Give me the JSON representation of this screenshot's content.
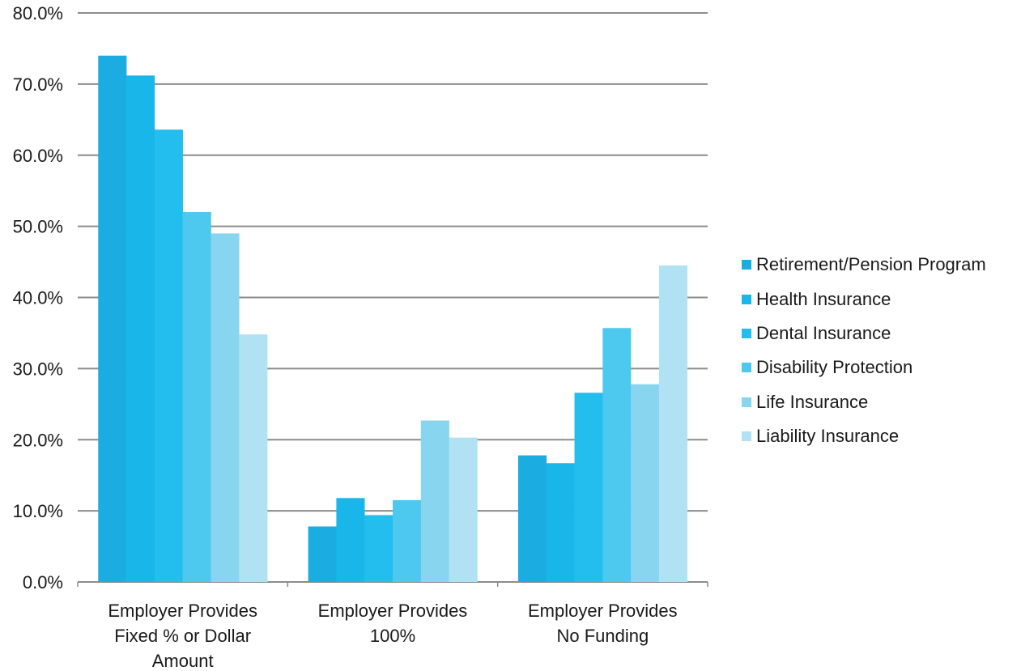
{
  "chart_data": {
    "type": "bar",
    "categories": [
      [
        "Employer Provides",
        "Fixed % or Dollar",
        "Amount"
      ],
      [
        "Employer Provides",
        "100%"
      ],
      [
        "Employer Provides",
        "No Funding"
      ]
    ],
    "series": [
      {
        "name": "Retirement/Pension Program",
        "color": "#1BACE2",
        "values": [
          74.0,
          7.8,
          17.8
        ]
      },
      {
        "name": "Health Insurance",
        "color": "#19B6E9",
        "values": [
          71.2,
          11.8,
          16.7
        ]
      },
      {
        "name": "Dental Insurance",
        "color": "#24BEEE",
        "values": [
          63.6,
          9.4,
          26.6
        ]
      },
      {
        "name": "Disability Protection",
        "color": "#4DC8EE",
        "values": [
          52.0,
          11.5,
          35.7
        ]
      },
      {
        "name": "Life Insurance",
        "color": "#88D5F0",
        "values": [
          49.0,
          22.7,
          27.8
        ]
      },
      {
        "name": "Liability Insurance",
        "color": "#B0E2F4",
        "values": [
          34.8,
          20.3,
          44.5
        ]
      }
    ],
    "y_ticks": [
      "0.0%",
      "10.0%",
      "20.0%",
      "30.0%",
      "40.0%",
      "50.0%",
      "60.0%",
      "70.0%",
      "80.0%"
    ],
    "ylim": [
      0,
      80
    ],
    "grid": true,
    "legend_position": "right",
    "title": "",
    "xlabel": "",
    "ylabel": ""
  }
}
